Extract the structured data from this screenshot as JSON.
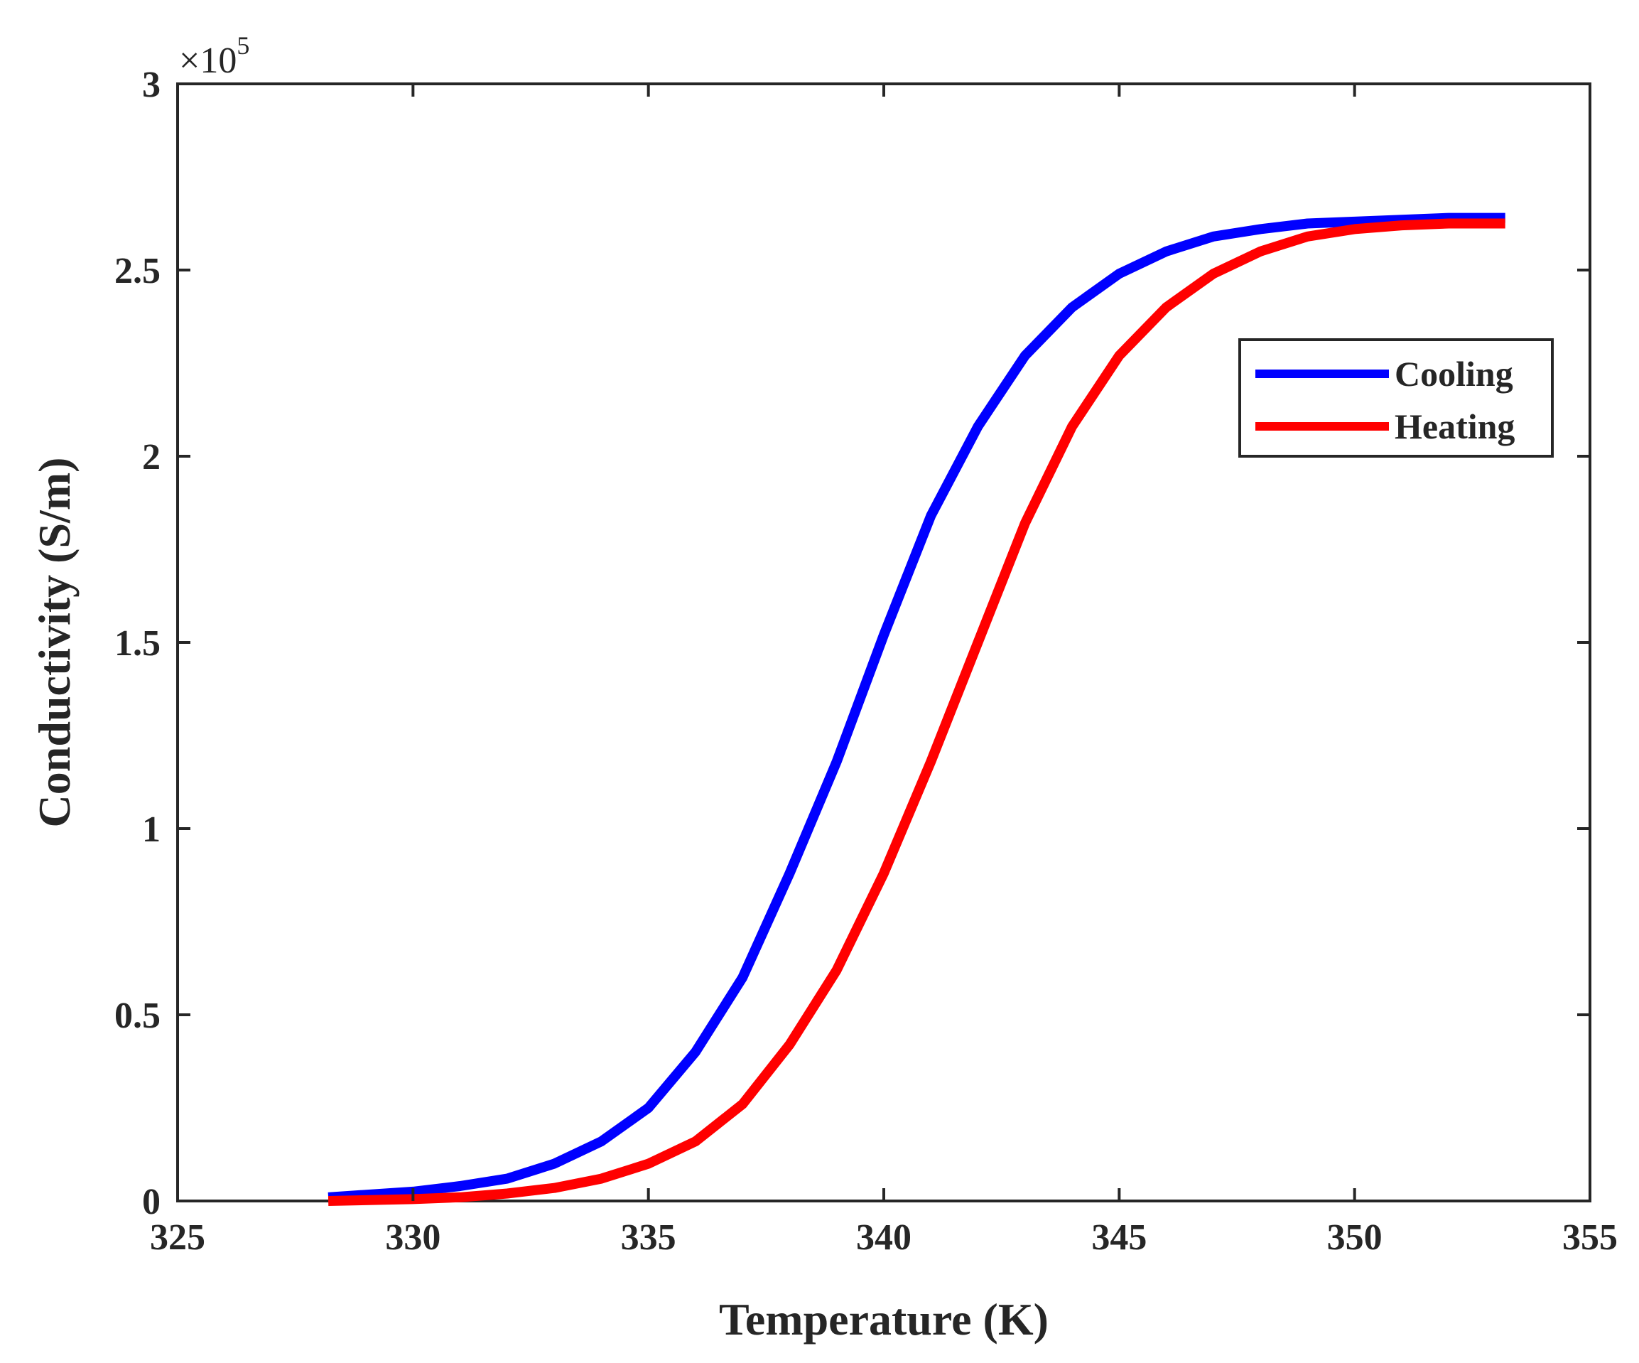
{
  "chart_data": {
    "type": "line",
    "title": "",
    "xlabel": "Temperature (K)",
    "ylabel": "Conductivity (S/m)",
    "xlim": [
      325,
      355
    ],
    "ylim": [
      0,
      3
    ],
    "y_multiplier_base": "×10",
    "y_multiplier_exp": "5",
    "xticks": [
      325,
      330,
      335,
      340,
      345,
      350,
      355
    ],
    "yticks": [
      0,
      0.5,
      1,
      1.5,
      2,
      2.5,
      3
    ],
    "ytick_labels": [
      "0",
      "0.5",
      "1",
      "1.5",
      "2",
      "2.5",
      "3"
    ],
    "legend_position": "upper-right",
    "series": [
      {
        "name": "Cooling",
        "color": "#0000ff",
        "x": [
          328.2,
          330,
          331,
          332,
          333,
          334,
          335,
          336,
          337,
          338,
          339,
          340,
          341,
          342,
          343,
          344,
          345,
          346,
          347,
          348,
          349,
          350,
          351,
          352,
          353.2
        ],
        "y": [
          0.01,
          0.025,
          0.04,
          0.06,
          0.1,
          0.16,
          0.25,
          0.4,
          0.6,
          0.88,
          1.18,
          1.52,
          1.84,
          2.08,
          2.27,
          2.4,
          2.49,
          2.55,
          2.59,
          2.61,
          2.625,
          2.63,
          2.635,
          2.64,
          2.64
        ]
      },
      {
        "name": "Heating",
        "color": "#ff0000",
        "x": [
          328.2,
          330,
          331,
          332,
          333,
          334,
          335,
          336,
          337,
          338,
          339,
          340,
          341,
          342,
          343,
          344,
          345,
          346,
          347,
          348,
          349,
          350,
          351,
          352,
          353.2
        ],
        "y": [
          0.0,
          0.005,
          0.01,
          0.02,
          0.035,
          0.06,
          0.1,
          0.16,
          0.26,
          0.42,
          0.62,
          0.88,
          1.18,
          1.5,
          1.82,
          2.08,
          2.27,
          2.4,
          2.49,
          2.55,
          2.59,
          2.61,
          2.62,
          2.625,
          2.625
        ]
      }
    ]
  }
}
